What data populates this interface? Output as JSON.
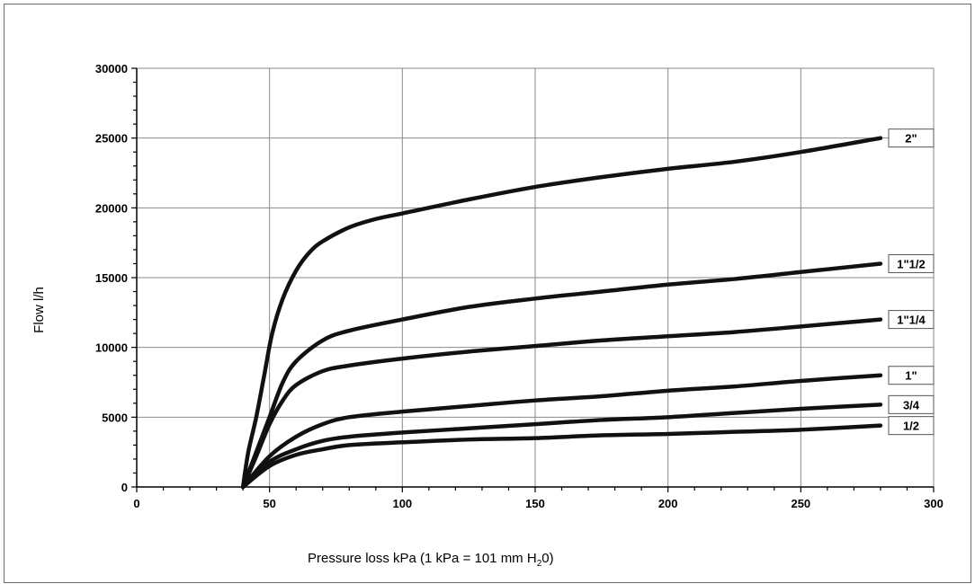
{
  "chart_data": {
    "type": "line",
    "xlabel": "Pressure loss kPa (1 kPa = 101 mm H",
    "xlabel_sub": "2",
    "xlabel_end": "0)",
    "ylabel": "Flow l/h",
    "xlim": [
      0,
      300
    ],
    "ylim": [
      0,
      30000
    ],
    "xticks": [
      0,
      50,
      100,
      150,
      200,
      250,
      300
    ],
    "yticks": [
      0,
      5000,
      10000,
      15000,
      20000,
      25000,
      30000
    ],
    "grid": true,
    "legend": "right end of each line",
    "series": [
      {
        "name": "2\"",
        "points": [
          [
            40,
            0
          ],
          [
            42,
            2500
          ],
          [
            45,
            5000
          ],
          [
            48,
            8000
          ],
          [
            51,
            11000
          ],
          [
            55,
            13500
          ],
          [
            60,
            15500
          ],
          [
            65,
            16800
          ],
          [
            70,
            17600
          ],
          [
            80,
            18600
          ],
          [
            90,
            19200
          ],
          [
            100,
            19600
          ],
          [
            125,
            20600
          ],
          [
            150,
            21500
          ],
          [
            175,
            22200
          ],
          [
            200,
            22800
          ],
          [
            225,
            23300
          ],
          [
            250,
            24000
          ],
          [
            280,
            25000
          ]
        ]
      },
      {
        "name": "1\"1/2",
        "points": [
          [
            40,
            0
          ],
          [
            45,
            2500
          ],
          [
            50,
            5000
          ],
          [
            55,
            7500
          ],
          [
            60,
            9000
          ],
          [
            70,
            10500
          ],
          [
            80,
            11200
          ],
          [
            100,
            12000
          ],
          [
            125,
            12900
          ],
          [
            150,
            13500
          ],
          [
            175,
            14000
          ],
          [
            200,
            14500
          ],
          [
            225,
            14900
          ],
          [
            250,
            15400
          ],
          [
            280,
            16000
          ]
        ]
      },
      {
        "name": "1\"1/4",
        "points": [
          [
            40,
            0
          ],
          [
            45,
            2200
          ],
          [
            50,
            4500
          ],
          [
            55,
            6200
          ],
          [
            60,
            7300
          ],
          [
            70,
            8300
          ],
          [
            80,
            8700
          ],
          [
            100,
            9200
          ],
          [
            125,
            9700
          ],
          [
            150,
            10100
          ],
          [
            175,
            10500
          ],
          [
            200,
            10800
          ],
          [
            225,
            11100
          ],
          [
            250,
            11500
          ],
          [
            280,
            12000
          ]
        ]
      },
      {
        "name": "1\"",
        "points": [
          [
            40,
            0
          ],
          [
            50,
            2200
          ],
          [
            60,
            3600
          ],
          [
            70,
            4500
          ],
          [
            80,
            5000
          ],
          [
            100,
            5400
          ],
          [
            125,
            5800
          ],
          [
            150,
            6200
          ],
          [
            175,
            6500
          ],
          [
            200,
            6900
          ],
          [
            225,
            7200
          ],
          [
            250,
            7600
          ],
          [
            280,
            8000
          ]
        ]
      },
      {
        "name": "3/4",
        "points": [
          [
            40,
            0
          ],
          [
            50,
            1800
          ],
          [
            60,
            2700
          ],
          [
            70,
            3300
          ],
          [
            80,
            3600
          ],
          [
            100,
            3900
          ],
          [
            125,
            4200
          ],
          [
            150,
            4500
          ],
          [
            175,
            4800
          ],
          [
            200,
            5000
          ],
          [
            225,
            5300
          ],
          [
            250,
            5600
          ],
          [
            280,
            5900
          ]
        ]
      },
      {
        "name": "1/2",
        "points": [
          [
            40,
            0
          ],
          [
            50,
            1500
          ],
          [
            60,
            2300
          ],
          [
            70,
            2700
          ],
          [
            80,
            3000
          ],
          [
            100,
            3200
          ],
          [
            125,
            3400
          ],
          [
            150,
            3500
          ],
          [
            175,
            3700
          ],
          [
            200,
            3800
          ],
          [
            225,
            3950
          ],
          [
            250,
            4100
          ],
          [
            280,
            4400
          ]
        ]
      }
    ]
  }
}
